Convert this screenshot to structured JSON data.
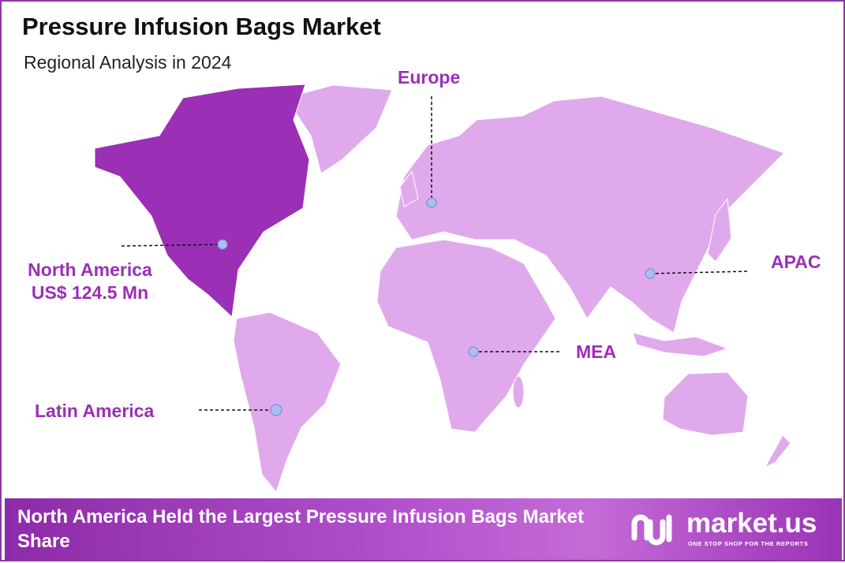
{
  "header": {
    "title": "Pressure Infusion Bags Market",
    "subtitle": "Regional Analysis in 2024"
  },
  "regions": [
    {
      "label": "North America",
      "value": "US$ 124.5 Mn"
    },
    {
      "label": "Europe"
    },
    {
      "label": "APAC"
    },
    {
      "label": "MEA"
    },
    {
      "label": "Latin America"
    }
  ],
  "footer": {
    "text": "North America Held the Largest Pressure Infusion Bags Market Share",
    "logo": "market.us",
    "tagline": "ONE STOP SHOP FOR THE REPORTS"
  }
}
